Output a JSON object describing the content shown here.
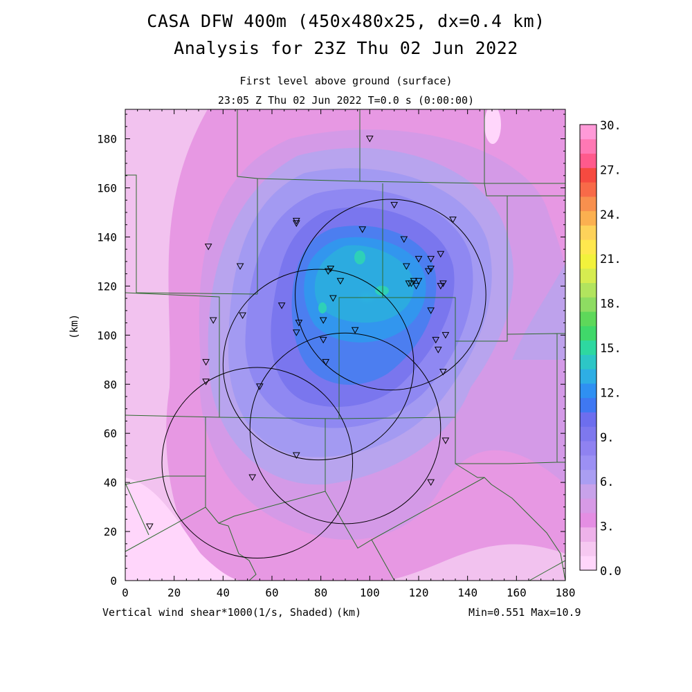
{
  "header": {
    "title_line1": "CASA DFW 400m (450x480x25, dx=0.4 km)",
    "title_line2": "Analysis for 23Z Thu 02 Jun 2022",
    "subtitle_level": "First level above ground (surface)",
    "subtitle_time": "23:05 Z Thu 02 Jun 2022   T=0.0 s (0:00:00)"
  },
  "axes": {
    "x_ticks": [
      "0",
      "20",
      "40",
      "60",
      "80",
      "100",
      "120",
      "140",
      "160",
      "180"
    ],
    "y_ticks": [
      "0",
      "20",
      "40",
      "60",
      "80",
      "100",
      "120",
      "140",
      "160",
      "180"
    ],
    "y_label": "(km)",
    "x_unit_label": "(km)",
    "x_range": [
      0,
      180
    ],
    "y_range": [
      0,
      192
    ]
  },
  "footer": {
    "field_label": "Vertical wind shear*1000(1/s, Shaded)",
    "minmax": "Min=0.551 Max=10.9"
  },
  "colorbar": {
    "labels": [
      "30.",
      "27.",
      "24.",
      "21.",
      "18.",
      "15.",
      "12.",
      "9.",
      "6.",
      "3.",
      "0.0"
    ],
    "colors": [
      "#ffd6fb",
      "#f6c8f1",
      "#eeb2ea",
      "#e48ee3",
      "#d79ae6",
      "#c8a2ea",
      "#aa9ef2",
      "#9c90f4",
      "#8f82f1",
      "#7e78ee",
      "#6d6eee",
      "#3f78f2",
      "#2f90f2",
      "#2eaee4",
      "#2dc6c6",
      "#2ed8a0",
      "#40d86a",
      "#5ed85a",
      "#8edc62",
      "#b2e45e",
      "#d6ec50",
      "#f2f23c",
      "#ffe84e",
      "#fdd25a",
      "#fbb050",
      "#f8904e",
      "#f86a48",
      "#f64a40",
      "#ff5a8c",
      "#ff78b4",
      "#ff9ad8"
    ]
  },
  "map": {
    "radar_circles": [
      {
        "cx": 108.5,
        "cy": 116.5,
        "r": 39
      },
      {
        "cx": 79,
        "cy": 88,
        "r": 39
      },
      {
        "cx": 90,
        "cy": 62,
        "r": 39
      },
      {
        "cx": 54,
        "cy": 48,
        "r": 39
      }
    ],
    "stations": [
      [
        100,
        180
      ],
      [
        110,
        153
      ],
      [
        134,
        147
      ],
      [
        70,
        146.5
      ],
      [
        70,
        145.5
      ],
      [
        97,
        143
      ],
      [
        114,
        139
      ],
      [
        34,
        136
      ],
      [
        47,
        128
      ],
      [
        129,
        133
      ],
      [
        125,
        131
      ],
      [
        120,
        131
      ],
      [
        115,
        128
      ],
      [
        125,
        127
      ],
      [
        124,
        126
      ],
      [
        84,
        127
      ],
      [
        83,
        126
      ],
      [
        88,
        122
      ],
      [
        116,
        121
      ],
      [
        118,
        122
      ],
      [
        120,
        122
      ],
      [
        117,
        121
      ],
      [
        119,
        120
      ],
      [
        130,
        121
      ],
      [
        129,
        120
      ],
      [
        85,
        115
      ],
      [
        64,
        112
      ],
      [
        125,
        110
      ],
      [
        48,
        108
      ],
      [
        81,
        106
      ],
      [
        71,
        105
      ],
      [
        36,
        106
      ],
      [
        94,
        102
      ],
      [
        70,
        101
      ],
      [
        131,
        100
      ],
      [
        127,
        98
      ],
      [
        81,
        98
      ],
      [
        128,
        94
      ],
      [
        33,
        89
      ],
      [
        82,
        89
      ],
      [
        130,
        85
      ],
      [
        33,
        81
      ],
      [
        55,
        79
      ],
      [
        131,
        57
      ],
      [
        70,
        51
      ],
      [
        52,
        42
      ],
      [
        125,
        40
      ],
      [
        10,
        22
      ]
    ]
  }
}
